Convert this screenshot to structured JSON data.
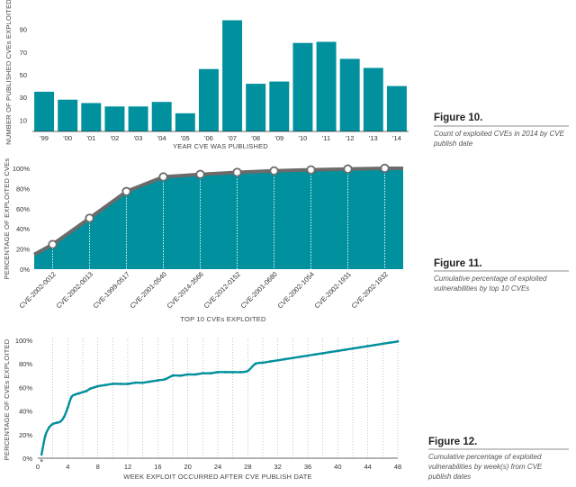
{
  "colors": {
    "teal": "#00909e",
    "gray": "#6b6b6b",
    "grid": "#9a9a9a",
    "dots": "#7f7f7f"
  },
  "figure10": {
    "title": "Figure 10.",
    "caption": [
      "Count of exploited CVEs in 2014 by CVE",
      "publish date"
    ]
  },
  "figure11": {
    "title": "Figure 11.",
    "caption": [
      "Cumulative percentage of exploited",
      "vulnerabilities by top 10 CVEs"
    ]
  },
  "figure12": {
    "title": "Figure 12.",
    "caption": [
      "Cumulative percentage of exploited",
      "vulnerabilities by week(s) from CVE",
      "publish dates"
    ]
  },
  "chart_data": [
    {
      "type": "bar",
      "categories": [
        "'99",
        "'00",
        "'01",
        "'02",
        "'03",
        "'04",
        "'05",
        "'06",
        "'07",
        "'08",
        "'09",
        "'10",
        "'11",
        "'12",
        "'13",
        "'14"
      ],
      "values": [
        35,
        28,
        25,
        22,
        22,
        26,
        16,
        55,
        98,
        42,
        44,
        78,
        79,
        64,
        56,
        40
      ],
      "xlabel": "YEAR CVE WAS PUBLISHED",
      "ylabel": "NUMBER OF PUBLISHED CVEs EXPLOITED",
      "yticks": [
        10,
        30,
        50,
        70,
        90
      ],
      "ylim": [
        0,
        100
      ]
    },
    {
      "type": "area",
      "categories": [
        "CVE-2002-0012",
        "CVE-2002-0013",
        "CVE-1999-0517",
        "CVE-2001-0540",
        "CVE-2014-3566",
        "CVE-2012-0152",
        "CVE-2001-0680",
        "CVE-2002-1054",
        "CVE-2002-1931",
        "CVE-2002-1932"
      ],
      "values": [
        24.5,
        50.5,
        77,
        91.5,
        94,
        96,
        97.5,
        98.5,
        99.3,
        100
      ],
      "xlabel": "TOP 10 CVEs EXPLOITED",
      "ylabel": "PERCENTAGE OF EXPLOITED CVEs",
      "yticks": [
        "0%",
        "20%",
        "40%",
        "60%",
        "80%",
        "100%"
      ],
      "ylim": [
        0,
        100
      ]
    },
    {
      "type": "scatter",
      "x": [
        0.5,
        1,
        1.5,
        2,
        2.5,
        3,
        3.5,
        4,
        4.5,
        5,
        5.5,
        6,
        6.5,
        7,
        7.5,
        8,
        9,
        10,
        11,
        12,
        13,
        14,
        15,
        16,
        17,
        18,
        19,
        20,
        21,
        22,
        23,
        24,
        25,
        26,
        27,
        28,
        29,
        30,
        31,
        32,
        33,
        34,
        35,
        36,
        37,
        38,
        39,
        40,
        41,
        42,
        43,
        44,
        45,
        46,
        47,
        48
      ],
      "y": [
        -2,
        19,
        26,
        29,
        30,
        31,
        35,
        43,
        52,
        54,
        55,
        56,
        57,
        59,
        60,
        61,
        62,
        63,
        63,
        63,
        64,
        64,
        65,
        66,
        67,
        70,
        70,
        71,
        71,
        72,
        72,
        73,
        73,
        73,
        73,
        74,
        80,
        81,
        82,
        83,
        84,
        85,
        86,
        87,
        88,
        89,
        90,
        91,
        92,
        93,
        94,
        95,
        96,
        97,
        98,
        99
      ],
      "xlabel": "WEEK EXPLOIT OCCURRED AFTER CVE PUBLISH DATE",
      "ylabel": "PERCENTAGE OF CVEs EXPLOITED",
      "xticks": [
        "0",
        "4",
        "8",
        "12",
        "16",
        "20",
        "24",
        "28",
        "32",
        "36",
        "40",
        "44",
        "48"
      ],
      "yticks": [
        "0%",
        "20%",
        "40%",
        "60%",
        "80%",
        "100%"
      ],
      "xlim": [
        0,
        48
      ],
      "ylim": [
        0,
        100
      ],
      "grid": "vertical dotted lines"
    }
  ]
}
